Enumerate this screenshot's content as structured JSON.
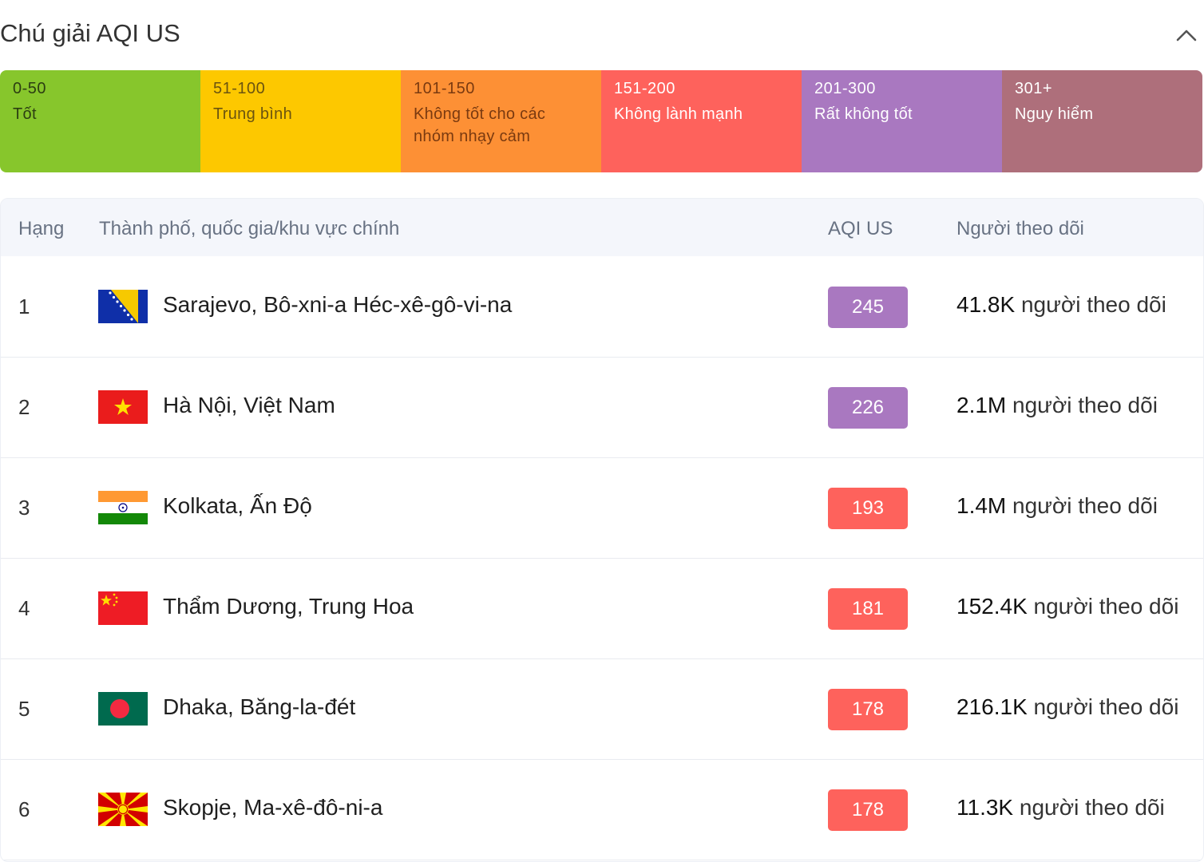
{
  "legend": {
    "title": "Chú giải AQI US",
    "collapse_icon": "chevron-up-icon",
    "segments": [
      {
        "range": "0-50",
        "label": "Tốt",
        "color": "#87c62c",
        "text_color": "#2c3e12"
      },
      {
        "range": "51-100",
        "label": "Trung bình",
        "color": "#fdc800",
        "text_color": "#6b5410"
      },
      {
        "range": "101-150",
        "label": "Không tốt cho các nhóm nhạy cảm",
        "color": "#fd9035",
        "text_color": "#7a3a10"
      },
      {
        "range": "151-200",
        "label": "Không lành mạnh",
        "color": "#fe625c",
        "text_color": "#ffffff"
      },
      {
        "range": "201-300",
        "label": "Rất không tốt",
        "color": "#a978c0",
        "text_color": "#ffffff"
      },
      {
        "range": "301+",
        "label": "Nguy hiểm",
        "color": "#ae6f7b",
        "text_color": "#ffffff"
      }
    ]
  },
  "table": {
    "headers": {
      "rank": "Hạng",
      "city": "Thành phố, quốc gia/khu vực chính",
      "aqi": "AQI US",
      "followers": "Người theo dõi"
    },
    "followers_suffix": "người theo dõi",
    "rows": [
      {
        "rank": "1",
        "city": "Sarajevo, Bô-xni-a Héc-xê-gô-vi-na",
        "flag": "bosnia-flag-icon",
        "aqi": "245",
        "aqi_color": "#a978c0",
        "followers": "41.8K"
      },
      {
        "rank": "2",
        "city": "Hà Nội, Việt Nam",
        "flag": "vietnam-flag-icon",
        "aqi": "226",
        "aqi_color": "#a978c0",
        "followers": "2.1M"
      },
      {
        "rank": "3",
        "city": "Kolkata, Ấn Độ",
        "flag": "india-flag-icon",
        "aqi": "193",
        "aqi_color": "#fe625c",
        "followers": "1.4M"
      },
      {
        "rank": "4",
        "city": "Thẩm Dương, Trung Hoa",
        "flag": "china-flag-icon",
        "aqi": "181",
        "aqi_color": "#fe625c",
        "followers": "152.4K"
      },
      {
        "rank": "5",
        "city": "Dhaka, Băng-la-đét",
        "flag": "bangladesh-flag-icon",
        "aqi": "178",
        "aqi_color": "#fe625c",
        "followers": "216.1K"
      },
      {
        "rank": "6",
        "city": "Skopje, Ma-xê-đô-ni-a",
        "flag": "north-macedonia-flag-icon",
        "aqi": "178",
        "aqi_color": "#fe625c",
        "followers": "11.3K"
      }
    ]
  }
}
